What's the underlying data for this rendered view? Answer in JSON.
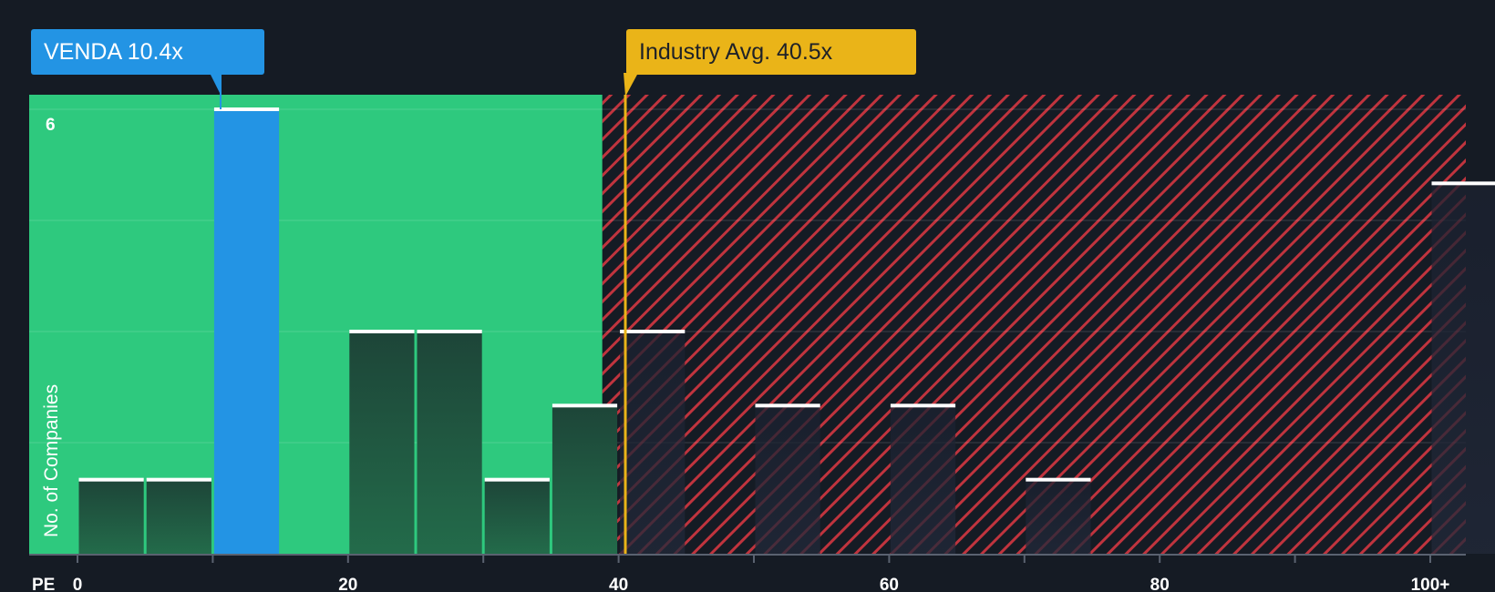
{
  "chart_data": {
    "type": "bar",
    "metric_label": "PE",
    "ylabel": "No. of Companies",
    "y_tick_label": "6",
    "ylim": [
      0,
      6
    ],
    "x_ticks": [
      "0",
      "20",
      "40",
      "60",
      "80",
      "100+"
    ],
    "bins": [
      {
        "start": 0,
        "end": 5,
        "count": 1
      },
      {
        "start": 5,
        "end": 10,
        "count": 1
      },
      {
        "start": 10,
        "end": 15,
        "count": 6,
        "highlight": true
      },
      {
        "start": 20,
        "end": 25,
        "count": 3
      },
      {
        "start": 25,
        "end": 30,
        "count": 3
      },
      {
        "start": 30,
        "end": 35,
        "count": 1
      },
      {
        "start": 35,
        "end": 40,
        "count": 2
      },
      {
        "start": 40,
        "end": 45,
        "count": 3
      },
      {
        "start": 50,
        "end": 55,
        "count": 2
      },
      {
        "start": 60,
        "end": 65,
        "count": 2
      },
      {
        "start": 70,
        "end": 75,
        "count": 1
      },
      {
        "start": 100,
        "end": 105,
        "count": 5
      }
    ],
    "company": {
      "name": "VENDA",
      "value": 10.4,
      "label": "VENDA 10.4x"
    },
    "industry": {
      "value": 40.5,
      "label": "Industry Avg. 40.5x"
    },
    "fair_zone_end": 38.8,
    "colors": {
      "background": "#151b24",
      "fair_zone": "#2ec97e",
      "company_bar": "#2394e4",
      "industry_line": "#eab418",
      "hatch": "#c0343e",
      "bar_cap": "#ffffff"
    }
  }
}
